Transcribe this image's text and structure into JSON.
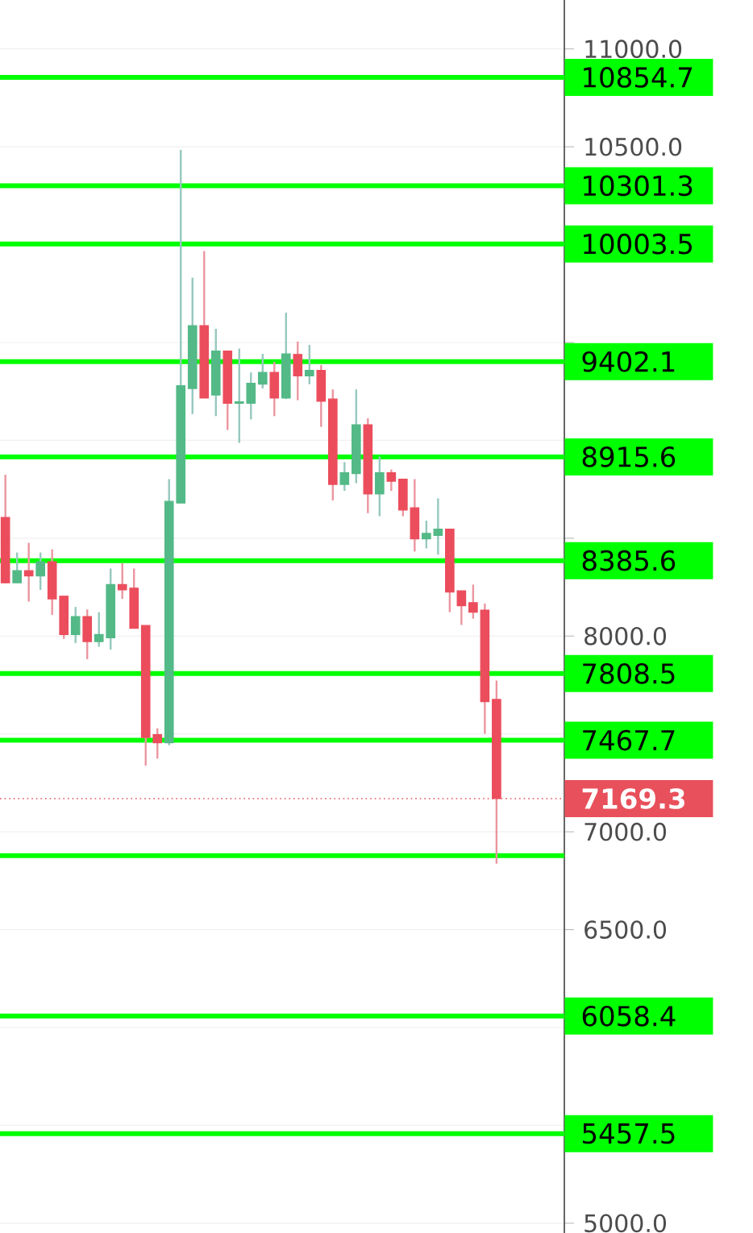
{
  "chart_data": {
    "type": "candlestick",
    "categories": [
      null,
      null,
      null,
      null,
      null,
      null,
      null,
      null,
      null,
      null,
      null,
      null,
      null,
      null,
      null,
      null,
      null,
      null,
      null,
      null,
      null,
      null,
      null,
      null,
      null,
      null,
      null,
      null,
      null,
      null,
      null,
      null,
      null,
      null,
      null,
      null,
      null,
      null,
      null,
      null,
      null,
      null,
      null
    ],
    "ohlc": [
      [
        8606,
        8824,
        8272,
        8272
      ],
      [
        8272,
        8427,
        8272,
        8334
      ],
      [
        8334,
        8476,
        8176,
        8307
      ],
      [
        8307,
        8427,
        8236,
        8380
      ],
      [
        8380,
        8443,
        8108,
        8190
      ],
      [
        8204,
        8204,
        7986,
        8008
      ],
      [
        8008,
        8149,
        7964,
        8100
      ],
      [
        8100,
        8136,
        7882,
        7972
      ],
      [
        7972,
        8122,
        7945,
        8008
      ],
      [
        7991,
        8345,
        7931,
        8263
      ],
      [
        8263,
        8372,
        8190,
        8236
      ],
      [
        8245,
        8345,
        8040,
        8040
      ],
      [
        8054,
        8054,
        7338,
        7482
      ],
      [
        7496,
        7529,
        7374,
        7455
      ],
      [
        7455,
        8802,
        7442,
        8688
      ],
      [
        8680,
        10484,
        8680,
        9279
      ],
      [
        9265,
        9831,
        9134,
        9586
      ],
      [
        9586,
        9967,
        9216,
        9216
      ],
      [
        9232,
        9570,
        9124,
        9456
      ],
      [
        9456,
        9456,
        9053,
        9189
      ],
      [
        9189,
        9469,
        8987,
        9197
      ],
      [
        9189,
        9347,
        9107,
        9292
      ],
      [
        9287,
        9442,
        9265,
        9347
      ],
      [
        9347,
        9401,
        9124,
        9216
      ],
      [
        9216,
        9652,
        9211,
        9442
      ],
      [
        9439,
        9505,
        9205,
        9330
      ],
      [
        9330,
        9488,
        9287,
        9358
      ],
      [
        9358,
        9385,
        9069,
        9200
      ],
      [
        9211,
        9260,
        8693,
        8775
      ],
      [
        8775,
        8889,
        8742,
        8835
      ],
      [
        8830,
        9260,
        8781,
        9080
      ],
      [
        9080,
        9113,
        8628,
        8726
      ],
      [
        8726,
        8917,
        8612,
        8835
      ],
      [
        8835,
        8851,
        8742,
        8791
      ],
      [
        8802,
        8802,
        8612,
        8644
      ],
      [
        8655,
        8802,
        8432,
        8497
      ],
      [
        8497,
        8590,
        8448,
        8525
      ],
      [
        8514,
        8704,
        8416,
        8546
      ],
      [
        8546,
        8546,
        8122,
        8225
      ],
      [
        8231,
        8231,
        8057,
        8155
      ],
      [
        8171,
        8263,
        8089,
        8122
      ],
      [
        8133,
        8166,
        7501,
        7665
      ],
      [
        7676,
        7773,
        6837,
        7169.3
      ]
    ],
    "ylim": [
      4950,
      11250
    ],
    "yticks": [
      {
        "value": 5000,
        "label": "5000.0"
      },
      {
        "value": 5500,
        "label": null
      },
      {
        "value": 6000,
        "label": null
      },
      {
        "value": 6500,
        "label": "6500.0"
      },
      {
        "value": 7000,
        "label": "7000.0"
      },
      {
        "value": 7500,
        "label": null
      },
      {
        "value": 8000,
        "label": "8000.0"
      },
      {
        "value": 8500,
        "label": null
      },
      {
        "value": 9000,
        "label": null
      },
      {
        "value": 9500,
        "label": null
      },
      {
        "value": 10000,
        "label": null
      },
      {
        "value": 10500,
        "label": "10500.0"
      },
      {
        "value": 11000,
        "label": "11000.0"
      }
    ],
    "grid": "y",
    "tick_labels": "y",
    "ref_lines": [
      {
        "axis": "y",
        "value": 10854.7,
        "label": "10854.7",
        "color": "#00ff00"
      },
      {
        "axis": "y",
        "value": 10301.3,
        "label": "10301.3",
        "color": "#00ff00"
      },
      {
        "axis": "y",
        "value": 10003.5,
        "label": "10003.5",
        "color": "#00ff00"
      },
      {
        "axis": "y",
        "value": 9402.1,
        "label": "9402.1",
        "color": "#00ff00"
      },
      {
        "axis": "y",
        "value": 8915.6,
        "label": "8915.6",
        "color": "#00ff00"
      },
      {
        "axis": "y",
        "value": 8385.6,
        "label": "8385.6",
        "color": "#00ff00"
      },
      {
        "axis": "y",
        "value": 7808.5,
        "label": "7808.5",
        "color": "#00ff00"
      },
      {
        "axis": "y",
        "value": 7467.7,
        "label": "7467.7",
        "color": "#00ff00"
      },
      {
        "axis": "y",
        "value": 7169.3,
        "label": "7169.3",
        "color": "#e8505b",
        "line_style": "dotted"
      },
      {
        "axis": "y",
        "value": 6878,
        "label": null,
        "color": "#00ff00"
      },
      {
        "axis": "y",
        "value": 6058.4,
        "label": "6058.4",
        "color": "#00ff00"
      },
      {
        "axis": "y",
        "value": 5457.5,
        "label": "5457.5",
        "color": "#00ff00"
      }
    ]
  }
}
